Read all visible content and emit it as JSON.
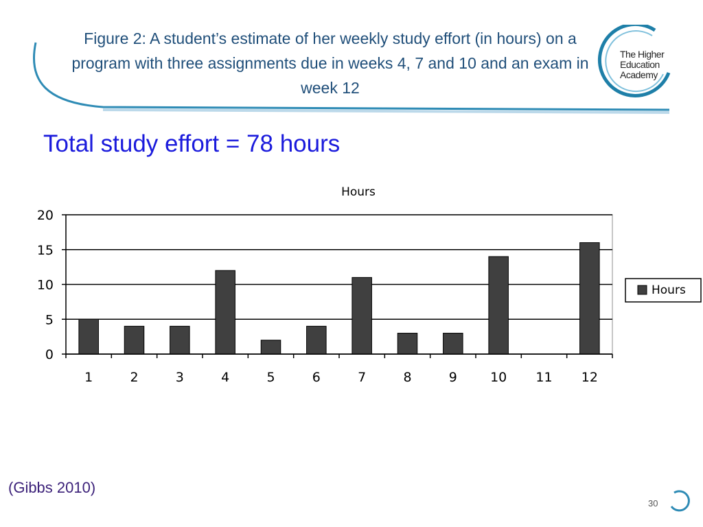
{
  "slide": {
    "figure_title": "Figure 2: A student’s estimate of her weekly study effort (in hours) on a  program  with three assignments due in weeks 4, 7 and 10 and an exam in week 12",
    "total_effort": "Total study effort = 78 hours",
    "citation": "(Gibbs 2010)",
    "page_number": "30"
  },
  "logo": {
    "lines": [
      "The Higher",
      "Education",
      "Academy"
    ]
  },
  "colors": {
    "title": "#1f4e79",
    "total": "#1a1adc",
    "citation": "#3a1f78",
    "bar": "#404040",
    "swoosh": "#2e8bb5"
  },
  "chart_data": {
    "type": "bar",
    "title": "Hours",
    "categories": [
      "1",
      "2",
      "3",
      "4",
      "5",
      "6",
      "7",
      "8",
      "9",
      "10",
      "11",
      "12"
    ],
    "series": [
      {
        "name": "Hours",
        "values": [
          5,
          4,
          4,
          12,
          2,
          4,
          11,
          3,
          3,
          14,
          0,
          16
        ]
      }
    ],
    "ylim": [
      0,
      20
    ],
    "yticks": [
      0,
      5,
      10,
      15,
      20
    ],
    "xlabel": "",
    "ylabel": "",
    "grid": true,
    "legend": "right"
  }
}
